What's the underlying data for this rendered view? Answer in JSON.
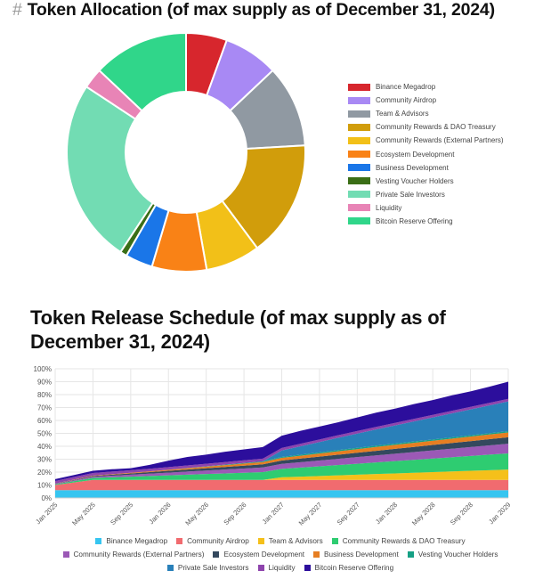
{
  "header1": {
    "hash": "#",
    "title": "Token Allocation (of max supply as of December 31, 2024)"
  },
  "header2": {
    "title": "Token Release Schedule (of max supply as of December 31, 2024)"
  },
  "chart_data": [
    {
      "type": "pie",
      "variant": "doughnut",
      "title": "Token Allocation (of max supply as of December 31, 2024)",
      "legend_position": "right",
      "unit": "percent",
      "categories": [
        "Binance Megadrop",
        "Community Airdrop",
        "Team & Advisors",
        "Community Rewards & DAO Treasury",
        "Community Rewards (External Partners)",
        "Ecosystem Development",
        "Business Development",
        "Vesting Voucher Holders",
        "Private Sale Investors",
        "Liquidity",
        "Bitcoin Reserve Offering"
      ],
      "values": [
        6,
        8,
        12,
        17,
        8,
        8,
        4,
        1,
        27,
        3,
        14
      ],
      "colors": [
        "#d7262d",
        "#a889f4",
        "#9099a2",
        "#d19d0b",
        "#f2c018",
        "#f98216",
        "#1a76e8",
        "#3a6e16",
        "#72dcb3",
        "#e884b6",
        "#30d68a"
      ]
    },
    {
      "type": "area",
      "stacked": true,
      "title": "Token Release Schedule (of max supply as of December 31, 2024)",
      "legend_position": "bottom",
      "ylim": [
        0,
        100
      ],
      "y_ticks": [
        "0%",
        "10%",
        "20%",
        "30%",
        "40%",
        "50%",
        "60%",
        "70%",
        "80%",
        "90%",
        "100%"
      ],
      "x_ticks": [
        "Jan 2025",
        "May 2025",
        "Sep 2025",
        "Jan 2026",
        "May 2026",
        "Sep 2026",
        "Jan 2027",
        "May 2027",
        "Sep 2027",
        "Jan 2028",
        "May 2028",
        "Sep 2028",
        "Jan 2029"
      ],
      "x_months": [
        0,
        2,
        4,
        6,
        8,
        10,
        12,
        14,
        16,
        18,
        20,
        22,
        24,
        26,
        28,
        30,
        32,
        34,
        36,
        38,
        40,
        42,
        44,
        46,
        48
      ],
      "series": [
        {
          "name": "Binance Megadrop",
          "color": "#36c5f0",
          "values": [
            6,
            6,
            6,
            6,
            6,
            6,
            6,
            6,
            6,
            6,
            6,
            6,
            6,
            6,
            6,
            6,
            6,
            6,
            6,
            6,
            6,
            6,
            6,
            6,
            6
          ]
        },
        {
          "name": "Community Airdrop",
          "color": "#f16b6f",
          "values": [
            4,
            6,
            8,
            8,
            8,
            8,
            8,
            8,
            8,
            8,
            8,
            8,
            8,
            8,
            8,
            8,
            8,
            8,
            8,
            8,
            8,
            8,
            8,
            8,
            8
          ]
        },
        {
          "name": "Team & Advisors",
          "color": "#f5c01a",
          "values": [
            0,
            0,
            0,
            0,
            0,
            0,
            0,
            0,
            0,
            0,
            0,
            0,
            2,
            2.5,
            3,
            3.5,
            4,
            4.5,
            5,
            5.5,
            6,
            6.5,
            7,
            7.5,
            8
          ]
        },
        {
          "name": "Community Rewards & DAO Treasury",
          "color": "#2ecc71",
          "values": [
            0.5,
            1,
            1.5,
            2,
            2.5,
            3,
            3.5,
            4,
            4.5,
            5,
            5.5,
            6,
            6.5,
            7,
            7.5,
            8,
            8.5,
            9,
            9.5,
            10,
            10.5,
            11,
            11.5,
            12,
            12.5
          ]
        },
        {
          "name": "Community Rewards (External Partners)",
          "color": "#9b59b6",
          "values": [
            0.3,
            0.6,
            0.9,
            1.2,
            1.5,
            1.8,
            2.1,
            2.4,
            2.7,
            3,
            3.3,
            3.6,
            3.9,
            4.2,
            4.5,
            4.8,
            5.1,
            5.4,
            5.7,
            6,
            6.3,
            6.6,
            6.9,
            7.2,
            7.5
          ]
        },
        {
          "name": "Ecosystem Development",
          "color": "#34495e",
          "values": [
            0.2,
            0.4,
            0.6,
            0.8,
            1,
            1.2,
            1.4,
            1.6,
            1.8,
            2,
            2.2,
            2.4,
            2.6,
            2.8,
            3,
            3.2,
            3.4,
            3.6,
            3.8,
            4,
            4.2,
            4.4,
            4.6,
            4.8,
            5
          ]
        },
        {
          "name": "Business Development",
          "color": "#e67e22",
          "values": [
            0.1,
            0.2,
            0.3,
            0.4,
            0.5,
            0.6,
            0.8,
            1,
            1.2,
            1.4,
            1.6,
            1.8,
            2,
            2.2,
            2.4,
            2.6,
            2.8,
            3,
            3.1,
            3.2,
            3.3,
            3.4,
            3.5,
            3.6,
            3.7
          ]
        },
        {
          "name": "Vesting Voucher Holders",
          "color": "#16a085",
          "values": [
            0,
            0,
            0,
            0,
            0,
            0,
            0.1,
            0.2,
            0.3,
            0.4,
            0.5,
            0.6,
            0.7,
            0.8,
            0.9,
            1,
            1,
            1,
            1,
            1,
            1,
            1,
            1,
            1,
            1
          ]
        },
        {
          "name": "Private Sale Investors",
          "color": "#2980b9",
          "values": [
            0,
            0,
            0,
            0,
            0,
            0,
            0,
            0,
            0,
            0,
            0,
            0,
            5,
            6.5,
            8,
            9.5,
            11,
            12.5,
            14,
            15.5,
            17,
            18.5,
            20,
            21.5,
            23
          ]
        },
        {
          "name": "Liquidity",
          "color": "#8e44ad",
          "values": [
            2,
            2,
            2,
            2,
            2,
            2,
            2,
            2,
            2,
            2,
            2,
            2,
            2,
            2,
            2,
            2,
            2,
            2,
            2,
            2,
            2,
            2,
            2,
            2,
            2
          ]
        },
        {
          "name": "Bitcoin Reserve Offering",
          "color": "#2c0e9c",
          "values": [
            1.5,
            1.6,
            1.7,
            1.8,
            1.5,
            3,
            5,
            6.5,
            7,
            8,
            8.5,
            9,
            9.5,
            10,
            10,
            10,
            10.5,
            11,
            11,
            11.5,
            11.5,
            12,
            12,
            12.5,
            13.3
          ]
        }
      ]
    }
  ]
}
